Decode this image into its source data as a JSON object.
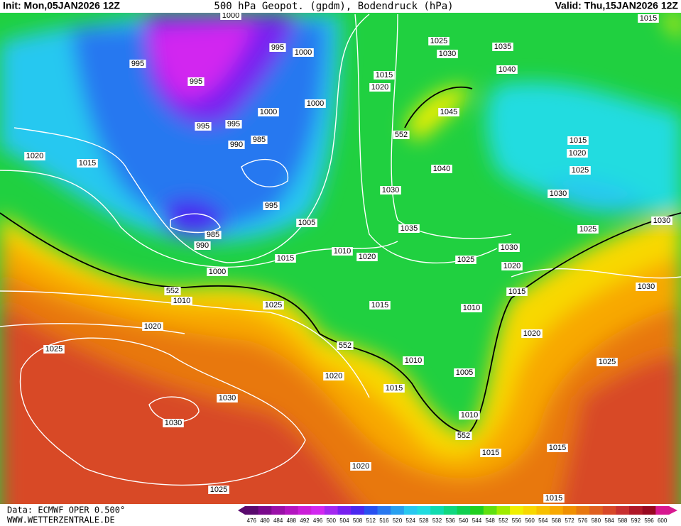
{
  "header": {
    "init": "Init: Mon,05JAN2026 12Z",
    "title": "500 hPa Geopot. (gpdm), Bodendruck (hPa)",
    "valid": "Valid: Thu,15JAN2026 12Z"
  },
  "isobar_labels": [
    1000,
    995,
    995,
    1000,
    995,
    1025,
    1030,
    1035,
    1015,
    1015,
    1020,
    1040,
    1000,
    1000,
    995,
    995,
    990,
    985,
    1045,
    552,
    1020,
    1015,
    1015,
    1020,
    1025,
    1040,
    995,
    1030,
    1030,
    985,
    990,
    1005,
    1035,
    1025,
    1030,
    1010,
    1020,
    1015,
    1025,
    1030,
    1020,
    1000,
    552,
    1010,
    1015,
    1030,
    1025,
    1015,
    1010,
    1020,
    1020,
    1025,
    552,
    1010,
    1025,
    1005,
    1020,
    1015,
    1030,
    1030,
    1010,
    552,
    1015,
    1015,
    1020,
    1025,
    1015
  ],
  "footer": {
    "source": "Data: ECMWF OPER 0.500°",
    "website": "WWW.WETTERZENTRALE.DE"
  },
  "legend": {
    "values": [
      476,
      480,
      484,
      488,
      492,
      496,
      500,
      504,
      508,
      512,
      516,
      520,
      524,
      528,
      532,
      536,
      540,
      544,
      548,
      552,
      556,
      560,
      564,
      568,
      572,
      576,
      580,
      584,
      588,
      592,
      596,
      600
    ],
    "colors": [
      "#5a0a6e",
      "#7a0a8c",
      "#9a10a8",
      "#b415c0",
      "#cc1ed8",
      "#d228f0",
      "#a428f0",
      "#7820f0",
      "#4a28f0",
      "#2850f0",
      "#2878f0",
      "#28a0f0",
      "#28c8f0",
      "#20dce0",
      "#10dcb0",
      "#10d880",
      "#10d050",
      "#20d020",
      "#60e010",
      "#a0ec00",
      "#f0f000",
      "#f8d800",
      "#f8c000",
      "#f8a800",
      "#f09000",
      "#e87810",
      "#e06020",
      "#d84828",
      "#c83030",
      "#b01828",
      "#980820",
      "#d81890"
    ]
  }
}
